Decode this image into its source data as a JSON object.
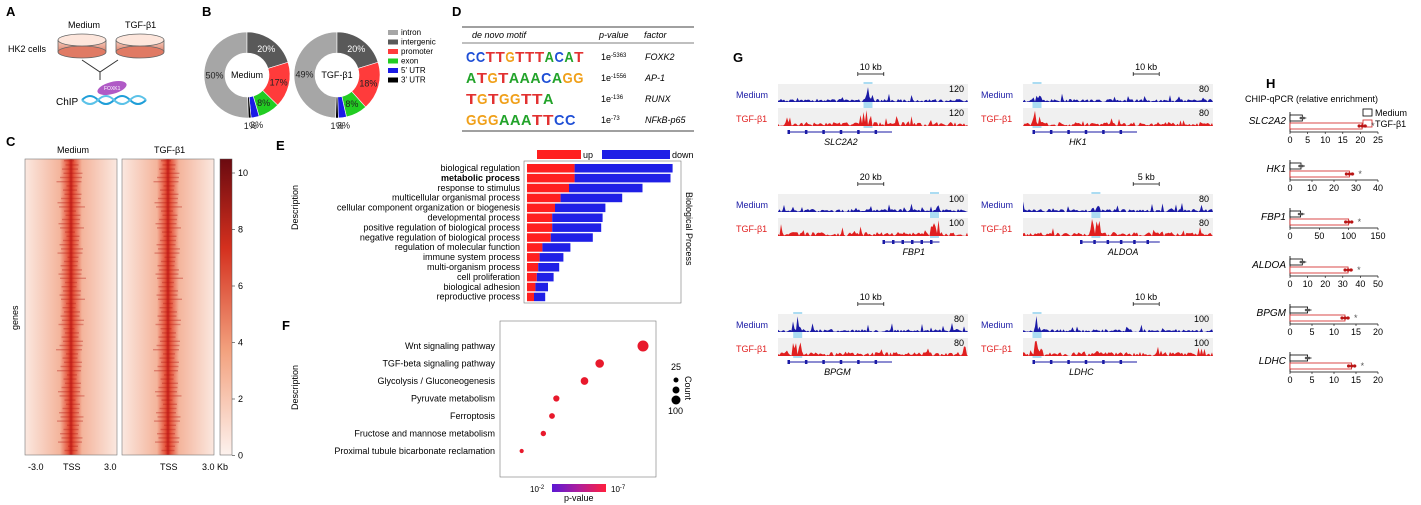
{
  "panels": {
    "A": {
      "label": "A",
      "medium": "Medium",
      "tgf": "TGF-β1",
      "cells": "HK2 cells",
      "chip": "ChIP",
      "protein": "FOXK1"
    },
    "B": {
      "label": "B",
      "colors": [
        "#a6a6a6",
        "#595959",
        "#ff3b3b",
        "#22cc22",
        "#1a1ae6",
        "#000000"
      ],
      "legend": [
        "intron",
        "intergenic",
        "promoter",
        "exon",
        "5' UTR",
        "3' UTR"
      ],
      "donuts": [
        {
          "center": "Medium",
          "values": [
            50,
            20,
            17,
            8,
            3,
            1
          ],
          "labels": [
            "50%",
            "20%",
            "17%",
            "8%",
            "3%",
            "1%"
          ]
        },
        {
          "center": "TGF-β1",
          "values": [
            49,
            20,
            18,
            8,
            3,
            1
          ],
          "labels": [
            "49%",
            "20%",
            "18%",
            "8%",
            "3%",
            "1%"
          ]
        }
      ]
    },
    "C": {
      "label": "C",
      "col1": "Medium",
      "col2": "TGF-β1",
      "ylabel": "genes",
      "xticks1": [
        "-3.0",
        "TSS",
        "3.0"
      ],
      "xticks2": [
        "TSS",
        "3.0 Kb"
      ],
      "scale": [
        "10",
        "8",
        "6",
        "4",
        "2",
        "0"
      ]
    },
    "D": {
      "label": "D",
      "headers": [
        "de novo motif",
        "p-value",
        "factor"
      ],
      "rows": [
        {
          "motif": "CCTTGTTTACAT",
          "p": "1e",
          "exp": "-5363",
          "factor": "FOXK2"
        },
        {
          "motif": "ATGTAAACAGG",
          "p": "1e",
          "exp": "-1556",
          "factor": "AP-1"
        },
        {
          "motif": "TGTGGTTA",
          "p": "1e",
          "exp": "-136",
          "factor": "RUNX"
        },
        {
          "motif": "GGGAAATTCC",
          "p": "1e",
          "exp": "-73",
          "factor": "NFkB-p65"
        }
      ]
    },
    "E": {
      "label": "E",
      "legend_up": "up",
      "legend_down": "down",
      "ylabel": "Description",
      "side": "Biological Process",
      "bold_term": "metabolic process",
      "terms": [
        "biological regulation",
        "metabolic process",
        "response to stimulus",
        "multicellular organismal process",
        "cellular component organization or biogenesis",
        "developmental process",
        "positive regulation of biological process",
        "negative regulation of biological process",
        "regulation of molecular function",
        "immune system process",
        "multi-organism process",
        "cell proliferation",
        "biological adhesion",
        "reproductive process"
      ],
      "up": [
        68,
        68,
        60,
        48,
        40,
        36,
        36,
        34,
        22,
        18,
        16,
        14,
        12,
        10
      ],
      "down": [
        140,
        137,
        105,
        88,
        72,
        72,
        70,
        60,
        40,
        34,
        30,
        24,
        18,
        16
      ]
    },
    "F": {
      "label": "F",
      "ylabel": "Description",
      "terms": [
        "Wnt signaling pathway",
        "TGF-beta signaling pathway",
        "Glycolysis / Gluconeogenesis",
        "Pyruvate metabolism",
        "Ferroptosis",
        "Fructose and mannose metabolism",
        "Proximal tubule bicarbonate reclamation"
      ],
      "neglog10p": [
        7.6,
        5.6,
        4.9,
        3.6,
        3.4,
        3.0,
        2.0
      ],
      "counts": [
        100,
        70,
        58,
        40,
        35,
        30,
        15
      ],
      "xlim": [
        1,
        8.2
      ],
      "axis_ticks": [
        {
          "base": "10",
          "exp": "-2"
        },
        {
          "base": "10",
          "exp": "-7"
        }
      ],
      "colorbar_label": "p-value",
      "size_title": "Count",
      "size_legend": [
        "25",
        "100"
      ]
    },
    "G": {
      "label": "G",
      "medium": "Medium",
      "tgf": "TGF-β1",
      "tracks": [
        {
          "gene": "SLC2A2",
          "scale": "10 kb",
          "max_medium": "120",
          "max_tgf": "120"
        },
        {
          "gene": "HK1",
          "scale": "10 kb",
          "max_medium": "80",
          "max_tgf": "80"
        },
        {
          "gene": "FBP1",
          "scale": "20 kb",
          "max_medium": "100",
          "max_tgf": "100"
        },
        {
          "gene": "ALDOA",
          "scale": "5 kb",
          "max_medium": "80",
          "max_tgf": "80"
        },
        {
          "gene": "BPGM",
          "scale": "10 kb",
          "max_medium": "80",
          "max_tgf": "80"
        },
        {
          "gene": "LDHC",
          "scale": "10 kb",
          "max_medium": "100",
          "max_tgf": "100"
        }
      ]
    },
    "H": {
      "label": "H",
      "title": "CHIP-qPCR (relative enrichment)",
      "legend": [
        "Medium",
        "TGF-β1"
      ],
      "star": "*",
      "genes": [
        {
          "gene": "SLC2A2",
          "medium": 3.5,
          "tgf": 20.5,
          "ticks": [
            "0",
            "5",
            "10",
            "15",
            "20",
            "25"
          ],
          "max": 25
        },
        {
          "gene": "HK1",
          "medium": 5,
          "tgf": 27,
          "ticks": [
            "0",
            "10",
            "20",
            "30",
            "40"
          ],
          "max": 40
        },
        {
          "gene": "FBP1",
          "medium": 18,
          "tgf": 100,
          "ticks": [
            "0",
            "50",
            "100",
            "150"
          ],
          "max": 150
        },
        {
          "gene": "ALDOA",
          "medium": 7,
          "tgf": 33,
          "ticks": [
            "0",
            "10",
            "20",
            "30",
            "40",
            "50"
          ],
          "max": 50
        },
        {
          "gene": "BPGM",
          "medium": 4,
          "tgf": 12.5,
          "ticks": [
            "0",
            "5",
            "10",
            "15",
            "20"
          ],
          "max": 20
        },
        {
          "gene": "LDHC",
          "medium": 4,
          "tgf": 14,
          "ticks": [
            "0",
            "5",
            "10",
            "15",
            "20"
          ],
          "max": 20
        }
      ]
    }
  }
}
